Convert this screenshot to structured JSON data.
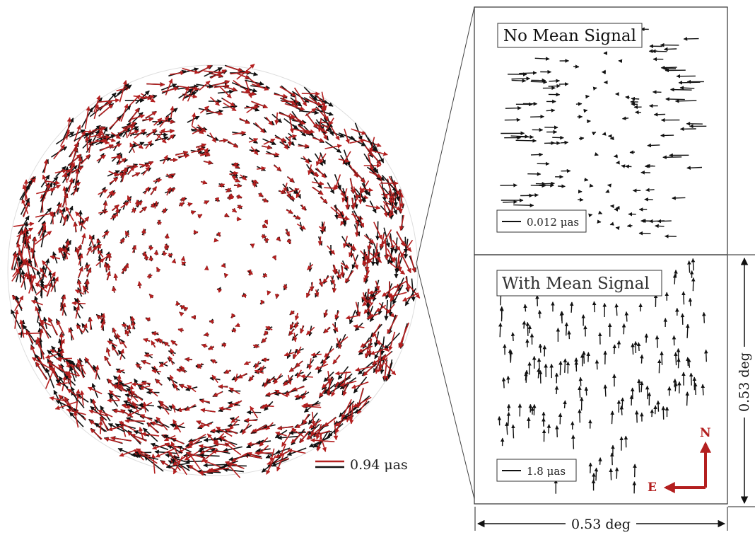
{
  "sphere": {
    "scale_label": "0.94 μas",
    "colors": {
      "model": "#b31f1f",
      "measured": "#111111"
    }
  },
  "panels": [
    {
      "title": "No Mean Signal",
      "scale_label": "0.012 μas"
    },
    {
      "title": "With Mean Signal",
      "scale_label": "1.8 μas"
    }
  ],
  "compass": {
    "north": "N",
    "east": "E",
    "color": "#b31f1f"
  },
  "dimensions": {
    "horizontal": "0.53 deg",
    "vertical": "0.53 deg"
  }
}
